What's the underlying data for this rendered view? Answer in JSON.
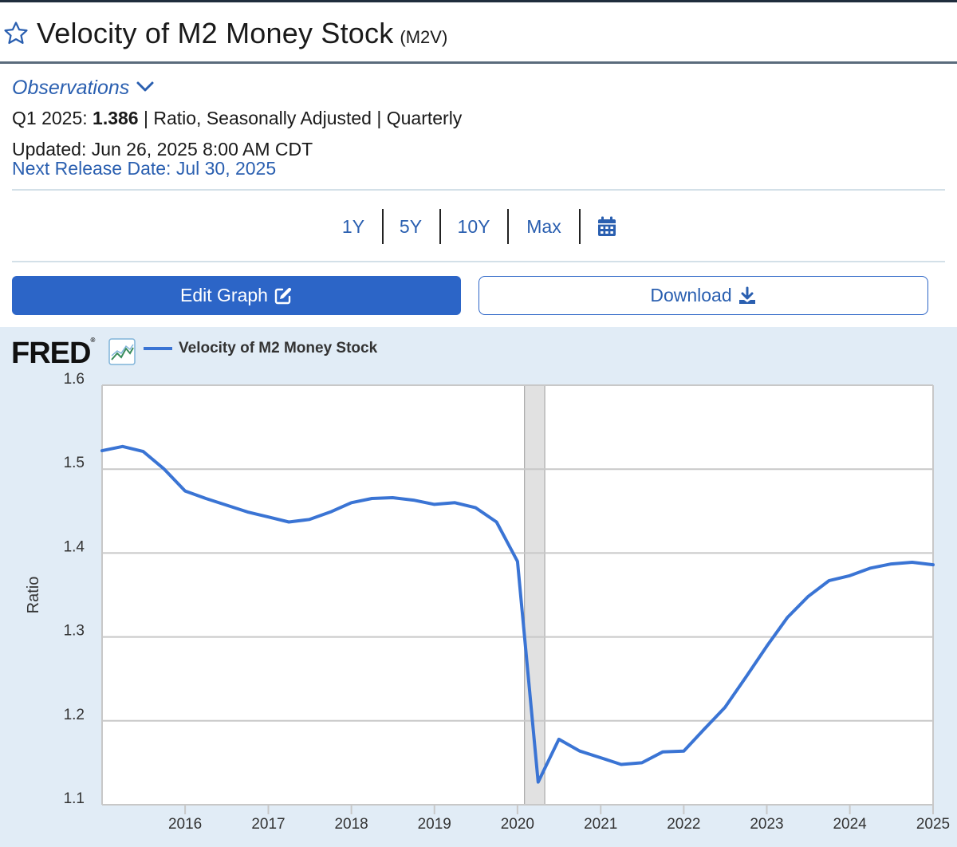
{
  "header": {
    "title": "Velocity of M2 Money Stock",
    "series_id": "(M2V)"
  },
  "observations": {
    "toggle_label": "Observations",
    "period": "Q1 2025:",
    "value": "1.386",
    "details": "| Ratio, Seasonally Adjusted | Quarterly",
    "updated": "Updated: Jun 26, 2025 8:00 AM CDT",
    "next_release": "Next Release Date: Jul 30, 2025"
  },
  "range_buttons": [
    "1Y",
    "5Y",
    "10Y",
    "Max"
  ],
  "actions": {
    "edit_label": "Edit Graph",
    "download_label": "Download"
  },
  "colors": {
    "accent": "#2c65c7",
    "link": "#2a5fb0",
    "series_line": "#3a74d4",
    "panel_bg": "#e1ecf6",
    "recession_shade": "#e1e1e1"
  },
  "icons": {
    "favorite": "star-icon",
    "toggle": "chevron-down-icon",
    "calendar": "calendar-icon",
    "edit": "edit-icon",
    "download": "download-icon",
    "fred_graph": "graph-icon"
  },
  "chart_data": {
    "type": "line",
    "source_logo": "FRED",
    "legend": [
      "Velocity of M2 Money Stock"
    ],
    "ylabel": "Ratio",
    "xlabel": "",
    "ylim": [
      1.1,
      1.6
    ],
    "xlim": [
      "2015-01-01",
      "2025-01-01"
    ],
    "y_ticks": [
      "1.1",
      "1.2",
      "1.3",
      "1.4",
      "1.5",
      "1.6"
    ],
    "x_ticks": [
      "2016",
      "2017",
      "2018",
      "2019",
      "2020",
      "2021",
      "2022",
      "2023",
      "2024",
      "2025"
    ],
    "grid": "horizontal",
    "recession_shading": [
      {
        "start": "2020-02-01",
        "end": "2020-04-30"
      }
    ],
    "series": [
      {
        "name": "Velocity of M2 Money Stock",
        "color": "#3a74d4",
        "x": [
          "2015-01-01",
          "2015-04-01",
          "2015-07-01",
          "2015-10-01",
          "2016-01-01",
          "2016-04-01",
          "2016-07-01",
          "2016-10-01",
          "2017-01-01",
          "2017-04-01",
          "2017-07-01",
          "2017-10-01",
          "2018-01-01",
          "2018-04-01",
          "2018-07-01",
          "2018-10-01",
          "2019-01-01",
          "2019-04-01",
          "2019-07-01",
          "2019-10-01",
          "2020-01-01",
          "2020-04-01",
          "2020-07-01",
          "2020-10-01",
          "2021-01-01",
          "2021-04-01",
          "2021-07-01",
          "2021-10-01",
          "2022-01-01",
          "2022-04-01",
          "2022-07-01",
          "2022-10-01",
          "2023-01-01",
          "2023-04-01",
          "2023-07-01",
          "2023-10-01",
          "2024-01-01",
          "2024-04-01",
          "2024-07-01",
          "2024-10-01",
          "2025-01-01"
        ],
        "values": [
          1.522,
          1.527,
          1.521,
          1.5,
          1.474,
          1.465,
          1.457,
          1.449,
          1.443,
          1.437,
          1.44,
          1.449,
          1.46,
          1.465,
          1.466,
          1.463,
          1.458,
          1.46,
          1.454,
          1.437,
          1.39,
          1.127,
          1.178,
          1.164,
          1.156,
          1.148,
          1.15,
          1.163,
          1.164,
          1.19,
          1.216,
          1.252,
          1.289,
          1.323,
          1.348,
          1.367,
          1.373,
          1.382,
          1.387,
          1.389,
          1.386
        ]
      }
    ]
  }
}
